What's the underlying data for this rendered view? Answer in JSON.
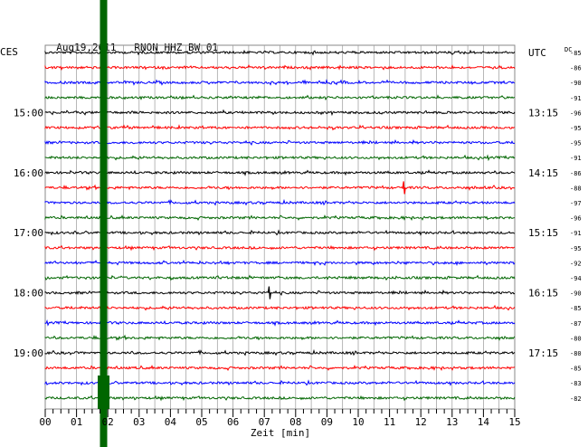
{
  "header": {
    "date": "Aug19,2011",
    "station": "RNON HHZ BW 01",
    "left_zone": "CES",
    "right_zone": "UTC",
    "dc_label": "DC"
  },
  "chart_data": {
    "type": "line",
    "title": "Aug19,2011   RNON HHZ BW 01",
    "xlabel": "Zeit [min]",
    "ylabel": "",
    "xlim": [
      0,
      15
    ],
    "x_ticks": [
      "00",
      "01",
      "02",
      "03",
      "04",
      "05",
      "06",
      "07",
      "08",
      "09",
      "10",
      "11",
      "12",
      "13",
      "14",
      "15"
    ],
    "trace_colors": [
      "#000000",
      "#ff0000",
      "#0000ff",
      "#006600"
    ],
    "left_time_labels": [
      {
        "trace_index": 4,
        "label": "15:00"
      },
      {
        "trace_index": 8,
        "label": "16:00"
      },
      {
        "trace_index": 12,
        "label": "17:00"
      },
      {
        "trace_index": 16,
        "label": "18:00"
      },
      {
        "trace_index": 20,
        "label": "19:00"
      }
    ],
    "right_time_labels": [
      {
        "trace_index": 0,
        "label": "UTC"
      },
      {
        "trace_index": 4,
        "label": "13:15"
      },
      {
        "trace_index": 8,
        "label": "14:15"
      },
      {
        "trace_index": 12,
        "label": "15:15"
      },
      {
        "trace_index": 16,
        "label": "16:15"
      },
      {
        "trace_index": 20,
        "label": "17:15"
      }
    ],
    "dc_offsets": [
      "-85",
      "-86",
      "-90",
      "-91",
      "-96",
      "-95",
      "-95",
      "-91",
      "-86",
      "-88",
      "-97",
      "-96",
      "-91",
      "-95",
      "-92",
      "-94",
      "-90",
      "-85",
      "-87",
      "-80",
      "-80",
      "-85",
      "-83",
      "-82"
    ],
    "event": {
      "type": "vertical_band",
      "color": "#006600",
      "x_minute": 1.85
    },
    "spikes": [
      {
        "trace_index": 9,
        "x_minute": 11.45
      },
      {
        "trace_index": 16,
        "x_minute": 7.15
      }
    ]
  }
}
